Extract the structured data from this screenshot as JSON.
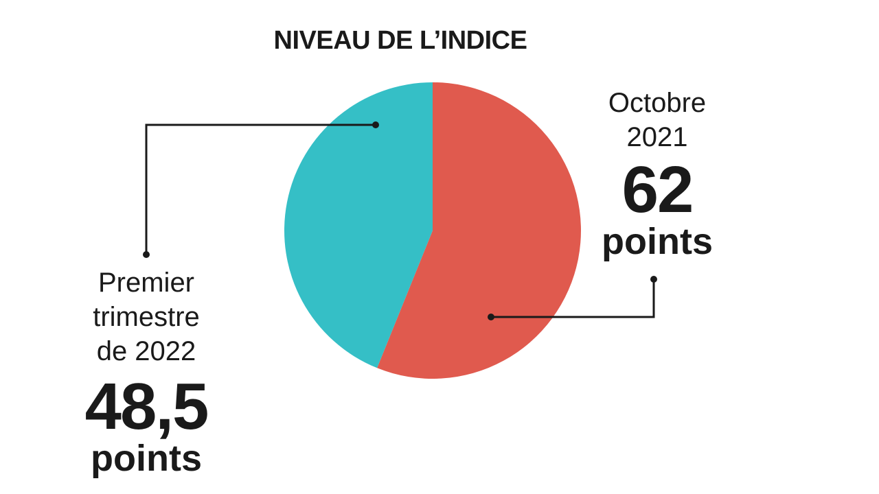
{
  "chart_data": {
    "type": "pie",
    "title": "NIVEAU DE L’INDICE",
    "categories": [
      "Octobre 2021",
      "Premier trimestre de 2022"
    ],
    "values": [
      62,
      48.5
    ],
    "value_labels": [
      "62",
      "48,5"
    ],
    "unit": "points",
    "colors": [
      "#e05a4e",
      "#35bfc6"
    ]
  }
}
